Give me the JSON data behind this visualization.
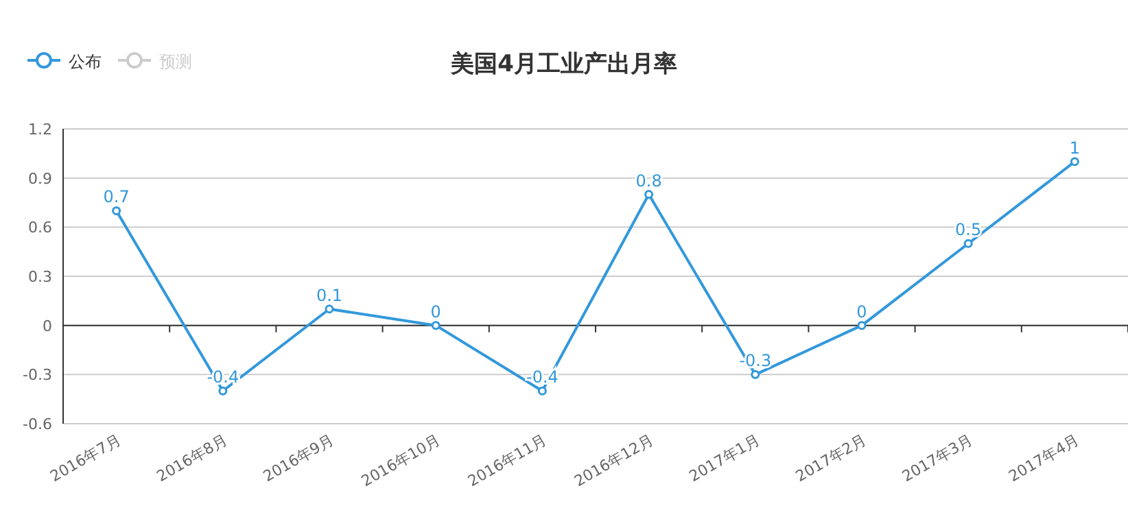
{
  "chart_data": {
    "type": "line",
    "title": "美国4月工业产出月率",
    "categories": [
      "2016年7月",
      "2016年8月",
      "2016年9月",
      "2016年10月",
      "2016年11月",
      "2016年12月",
      "2017年1月",
      "2017年2月",
      "2017年3月",
      "2017年4月"
    ],
    "series": [
      {
        "name": "公布",
        "color": "#3398db",
        "values": [
          0.7,
          -0.4,
          0.1,
          0,
          -0.4,
          0.8,
          -0.3,
          0,
          0.5,
          1
        ]
      },
      {
        "name": "预测",
        "color": "#cccccc",
        "values": [
          null,
          null,
          null,
          null,
          null,
          null,
          null,
          null,
          null,
          null
        ]
      }
    ],
    "ylim": [
      -0.6,
      1.2
    ],
    "yticks": [
      -0.6,
      -0.3,
      0,
      0.3,
      0.6,
      0.9,
      1.2
    ],
    "grid": "y",
    "legend": "top left",
    "data_labels": true,
    "marker": "circle"
  }
}
